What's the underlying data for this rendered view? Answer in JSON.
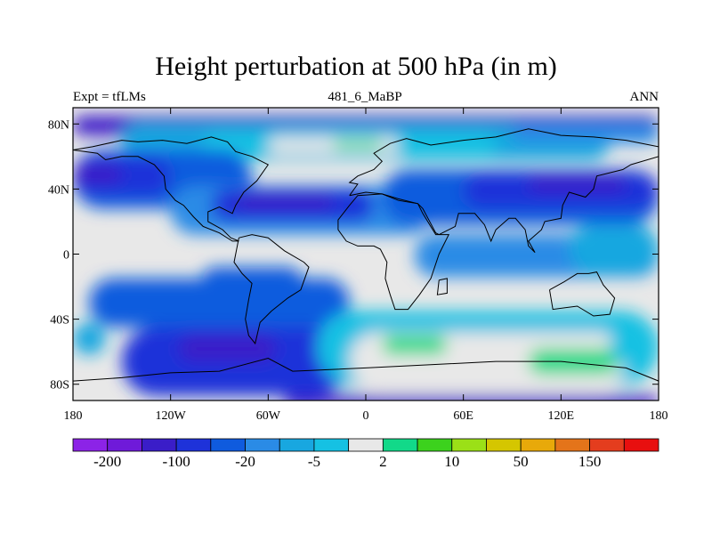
{
  "title": "Height perturbation at 500 hPa (in m)",
  "left_string": "Expt = tfLMs",
  "center_string": "481_6_MaBP",
  "right_string": "ANN",
  "map": {
    "projection": "cylindrical equidistant",
    "lon_range": [
      -180,
      180
    ],
    "lat_range": [
      -90,
      90
    ],
    "x_ticks": [
      {
        "value": -180,
        "label": "180"
      },
      {
        "value": -120,
        "label": "120W"
      },
      {
        "value": -60,
        "label": "60W"
      },
      {
        "value": 0,
        "label": "0"
      },
      {
        "value": 60,
        "label": "60E"
      },
      {
        "value": 120,
        "label": "120E"
      },
      {
        "value": 180,
        "label": "180"
      }
    ],
    "y_ticks": [
      {
        "value": 80,
        "label": "80N"
      },
      {
        "value": 40,
        "label": "40N"
      },
      {
        "value": 0,
        "label": "0"
      },
      {
        "value": -40,
        "label": "40S"
      },
      {
        "value": -80,
        "label": "80S"
      }
    ],
    "field_regions": [
      {
        "level": 2,
        "lon": -180,
        "lat": 85,
        "w": 360,
        "h": 12
      },
      {
        "level": 6,
        "lon": -150,
        "lat": 80,
        "w": 300,
        "h": 22
      },
      {
        "level": 7,
        "lon": -100,
        "lat": 75,
        "w": 180,
        "h": 16
      },
      {
        "level": 8,
        "lon": -60,
        "lat": 72,
        "w": 80,
        "h": 10
      },
      {
        "level": 9,
        "lon": -20,
        "lat": 70,
        "w": 30,
        "h": 5
      },
      {
        "level": 5,
        "lon": 90,
        "lat": 80,
        "w": 90,
        "h": 12
      },
      {
        "level": 4,
        "lon": -180,
        "lat": 64,
        "w": 110,
        "h": 36
      },
      {
        "level": 3,
        "lon": -180,
        "lat": 60,
        "w": 60,
        "h": 24
      },
      {
        "level": 2,
        "lon": -180,
        "lat": 55,
        "w": 30,
        "h": 12
      },
      {
        "level": 5,
        "lon": -120,
        "lat": 42,
        "w": 160,
        "h": 30
      },
      {
        "level": 3,
        "lon": -95,
        "lat": 40,
        "w": 100,
        "h": 20
      },
      {
        "level": 2,
        "lon": -80,
        "lat": 37,
        "w": 60,
        "h": 10
      },
      {
        "level": 4,
        "lon": 10,
        "lat": 52,
        "w": 170,
        "h": 34
      },
      {
        "level": 3,
        "lon": 60,
        "lat": 50,
        "w": 120,
        "h": 22
      },
      {
        "level": 2,
        "lon": 100,
        "lat": 48,
        "w": 60,
        "h": 10
      },
      {
        "level": 5,
        "lon": 30,
        "lat": 12,
        "w": 150,
        "h": 26
      },
      {
        "level": 6,
        "lon": 125,
        "lat": 18,
        "w": 55,
        "h": 30
      },
      {
        "level": 4,
        "lon": -170,
        "lat": -15,
        "w": 160,
        "h": 30
      },
      {
        "level": 3,
        "lon": -150,
        "lat": -45,
        "w": 140,
        "h": 42
      },
      {
        "level": 2,
        "lon": -115,
        "lat": -50,
        "w": 60,
        "h": 16
      },
      {
        "level": 4,
        "lon": -100,
        "lat": -8,
        "w": 60,
        "h": 14
      },
      {
        "level": 7,
        "lon": -30,
        "lat": -35,
        "w": 210,
        "h": 45
      },
      {
        "level": 8,
        "lon": -10,
        "lat": -48,
        "w": 170,
        "h": 34
      },
      {
        "level": 9,
        "lon": 10,
        "lat": -50,
        "w": 40,
        "h": 12
      },
      {
        "level": 9,
        "lon": 100,
        "lat": -58,
        "w": 55,
        "h": 16
      },
      {
        "level": 7,
        "lon": 150,
        "lat": -40,
        "w": 30,
        "h": 30
      },
      {
        "level": 6,
        "lon": -180,
        "lat": -42,
        "w": 20,
        "h": 20
      },
      {
        "level": 2,
        "lon": -50,
        "lat": -87,
        "w": 230,
        "h": 8
      }
    ],
    "coast_outlines": [
      [
        [
          -180,
          64
        ],
        [
          -168,
          66
        ],
        [
          -150,
          70
        ],
        [
          -140,
          69
        ],
        [
          -125,
          70
        ],
        [
          -110,
          68
        ],
        [
          -95,
          72
        ],
        [
          -85,
          69
        ],
        [
          -80,
          63
        ],
        [
          -70,
          60
        ],
        [
          -60,
          55
        ],
        [
          -67,
          45
        ],
        [
          -75,
          38
        ],
        [
          -80,
          30
        ],
        [
          -82,
          25
        ],
        [
          -90,
          29
        ],
        [
          -97,
          26
        ],
        [
          -97,
          20
        ],
        [
          -88,
          15
        ],
        [
          -83,
          10
        ],
        [
          -78,
          8
        ],
        [
          -82,
          8
        ],
        [
          -90,
          13
        ],
        [
          -100,
          17
        ],
        [
          -106,
          23
        ],
        [
          -112,
          30
        ],
        [
          -117,
          33
        ],
        [
          -123,
          40
        ],
        [
          -124,
          48
        ],
        [
          -130,
          55
        ],
        [
          -140,
          60
        ],
        [
          -150,
          60
        ],
        [
          -160,
          58
        ],
        [
          -165,
          62
        ],
        [
          -180,
          64
        ]
      ],
      [
        [
          -78,
          10
        ],
        [
          -70,
          12
        ],
        [
          -60,
          10
        ],
        [
          -50,
          2
        ],
        [
          -38,
          -5
        ],
        [
          -35,
          -8
        ],
        [
          -40,
          -22
        ],
        [
          -48,
          -27
        ],
        [
          -58,
          -35
        ],
        [
          -65,
          -42
        ],
        [
          -68,
          -55
        ],
        [
          -72,
          -50
        ],
        [
          -74,
          -40
        ],
        [
          -72,
          -28
        ],
        [
          -70,
          -18
        ],
        [
          -76,
          -12
        ],
        [
          -81,
          -5
        ],
        [
          -80,
          0
        ],
        [
          -78,
          10
        ]
      ],
      [
        [
          -10,
          36
        ],
        [
          -5,
          43
        ],
        [
          -10,
          44
        ],
        [
          -5,
          48
        ],
        [
          5,
          52
        ],
        [
          10,
          57
        ],
        [
          5,
          62
        ],
        [
          15,
          68
        ],
        [
          25,
          71
        ],
        [
          40,
          67
        ],
        [
          60,
          70
        ],
        [
          80,
          72
        ],
        [
          100,
          77
        ],
        [
          120,
          73
        ],
        [
          140,
          72
        ],
        [
          160,
          70
        ],
        [
          170,
          68
        ],
        [
          180,
          66
        ],
        [
          180,
          60
        ],
        [
          163,
          55
        ],
        [
          158,
          52
        ],
        [
          142,
          48
        ],
        [
          140,
          40
        ],
        [
          135,
          35
        ],
        [
          125,
          38
        ],
        [
          121,
          30
        ],
        [
          120,
          22
        ],
        [
          110,
          20
        ],
        [
          108,
          15
        ],
        [
          100,
          8
        ],
        [
          104,
          1
        ],
        [
          100,
          5
        ],
        [
          98,
          15
        ],
        [
          92,
          22
        ],
        [
          88,
          22
        ],
        [
          80,
          15
        ],
        [
          77,
          8
        ],
        [
          73,
          18
        ],
        [
          67,
          25
        ],
        [
          57,
          25
        ],
        [
          55,
          17
        ],
        [
          45,
          12
        ],
        [
          43,
          13
        ],
        [
          35,
          28
        ],
        [
          32,
          31
        ],
        [
          20,
          34
        ],
        [
          10,
          37
        ],
        [
          0,
          38
        ],
        [
          -10,
          36
        ]
      ],
      [
        [
          -17,
          15
        ],
        [
          -17,
          21
        ],
        [
          -10,
          30
        ],
        [
          -5,
          36
        ],
        [
          10,
          37
        ],
        [
          20,
          33
        ],
        [
          32,
          31
        ],
        [
          35,
          25
        ],
        [
          43,
          12
        ],
        [
          51,
          12
        ],
        [
          45,
          0
        ],
        [
          40,
          -15
        ],
        [
          33,
          -25
        ],
        [
          26,
          -34
        ],
        [
          18,
          -34
        ],
        [
          15,
          -25
        ],
        [
          12,
          -15
        ],
        [
          13,
          -5
        ],
        [
          9,
          3
        ],
        [
          5,
          5
        ],
        [
          -5,
          5
        ],
        [
          -12,
          8
        ],
        [
          -17,
          15
        ]
      ],
      [
        [
          113,
          -22
        ],
        [
          122,
          -17
        ],
        [
          130,
          -12
        ],
        [
          137,
          -12
        ],
        [
          142,
          -11
        ],
        [
          146,
          -19
        ],
        [
          153,
          -27
        ],
        [
          150,
          -37
        ],
        [
          140,
          -38
        ],
        [
          130,
          -32
        ],
        [
          115,
          -34
        ],
        [
          113,
          -22
        ]
      ],
      [
        [
          45,
          -16
        ],
        [
          50,
          -15
        ],
        [
          50,
          -24
        ],
        [
          44,
          -25
        ],
        [
          45,
          -16
        ]
      ],
      [
        [
          -180,
          -78
        ],
        [
          -150,
          -76
        ],
        [
          -120,
          -73
        ],
        [
          -90,
          -72
        ],
        [
          -60,
          -64
        ],
        [
          -45,
          -72
        ],
        [
          0,
          -70
        ],
        [
          40,
          -68
        ],
        [
          80,
          -66
        ],
        [
          120,
          -66
        ],
        [
          160,
          -70
        ],
        [
          180,
          -78
        ]
      ]
    ]
  },
  "colorbar": {
    "colors": [
      "#8c23e7",
      "#6f1ad9",
      "#3a1dc8",
      "#1e32d9",
      "#0f5bde",
      "#2a8be6",
      "#18a7e0",
      "#15c1e3",
      "#e8e8e8",
      "#12d989",
      "#3cd21d",
      "#9be017",
      "#d5c600",
      "#e8a90a",
      "#e4741a",
      "#e43d1e",
      "#e80f0f"
    ],
    "labels": [
      {
        "after_box": 1,
        "text": "-200"
      },
      {
        "after_box": 3,
        "text": "-100"
      },
      {
        "after_box": 5,
        "text": "-20"
      },
      {
        "after_box": 7,
        "text": "-5"
      },
      {
        "after_box": 9,
        "text": "2"
      },
      {
        "after_box": 11,
        "text": "10"
      },
      {
        "after_box": 13,
        "text": "50"
      },
      {
        "after_box": 15,
        "text": "150"
      }
    ]
  }
}
